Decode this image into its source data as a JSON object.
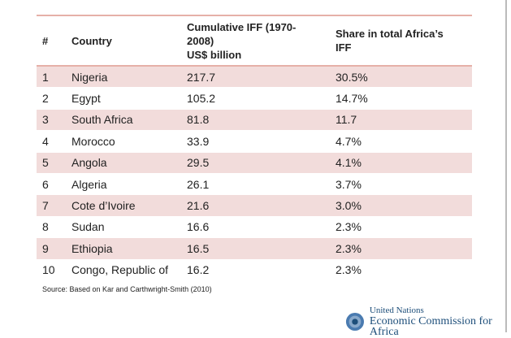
{
  "table": {
    "headers": [
      "#",
      "Country",
      "Cumulative IFF (1970-2008)",
      "US$ billion",
      "Share in total Africa’s IFF"
    ],
    "rows": [
      [
        "1",
        "Nigeria",
        "217.7",
        "30.5%"
      ],
      [
        "2",
        "Egypt",
        "105.2",
        "14.7%"
      ],
      [
        "3",
        "South Africa",
        "81.8",
        "11.7"
      ],
      [
        "4",
        "Morocco",
        "33.9",
        "4.7%"
      ],
      [
        "5",
        "Angola",
        "29.5",
        "4.1%"
      ],
      [
        "6",
        "Algeria",
        "26.1",
        "3.7%"
      ],
      [
        "7",
        "Cote d’Ivoire",
        "21.6",
        "3.0%"
      ],
      [
        "8",
        "Sudan",
        "16.6",
        "2.3%"
      ],
      [
        "9",
        "Ethiopia",
        "16.5",
        "2.3%"
      ],
      [
        "10",
        "Congo, Republic of",
        "16.2",
        "2.3%"
      ]
    ],
    "row_shade_color": "#f2dcdb"
  },
  "source": "Source: Based on Kar and Carthwright-Smith (2010)",
  "logo": {
    "line1": "United Nations",
    "line2": "Economic Commission for Africa",
    "icon": "un-emblem-icon"
  }
}
